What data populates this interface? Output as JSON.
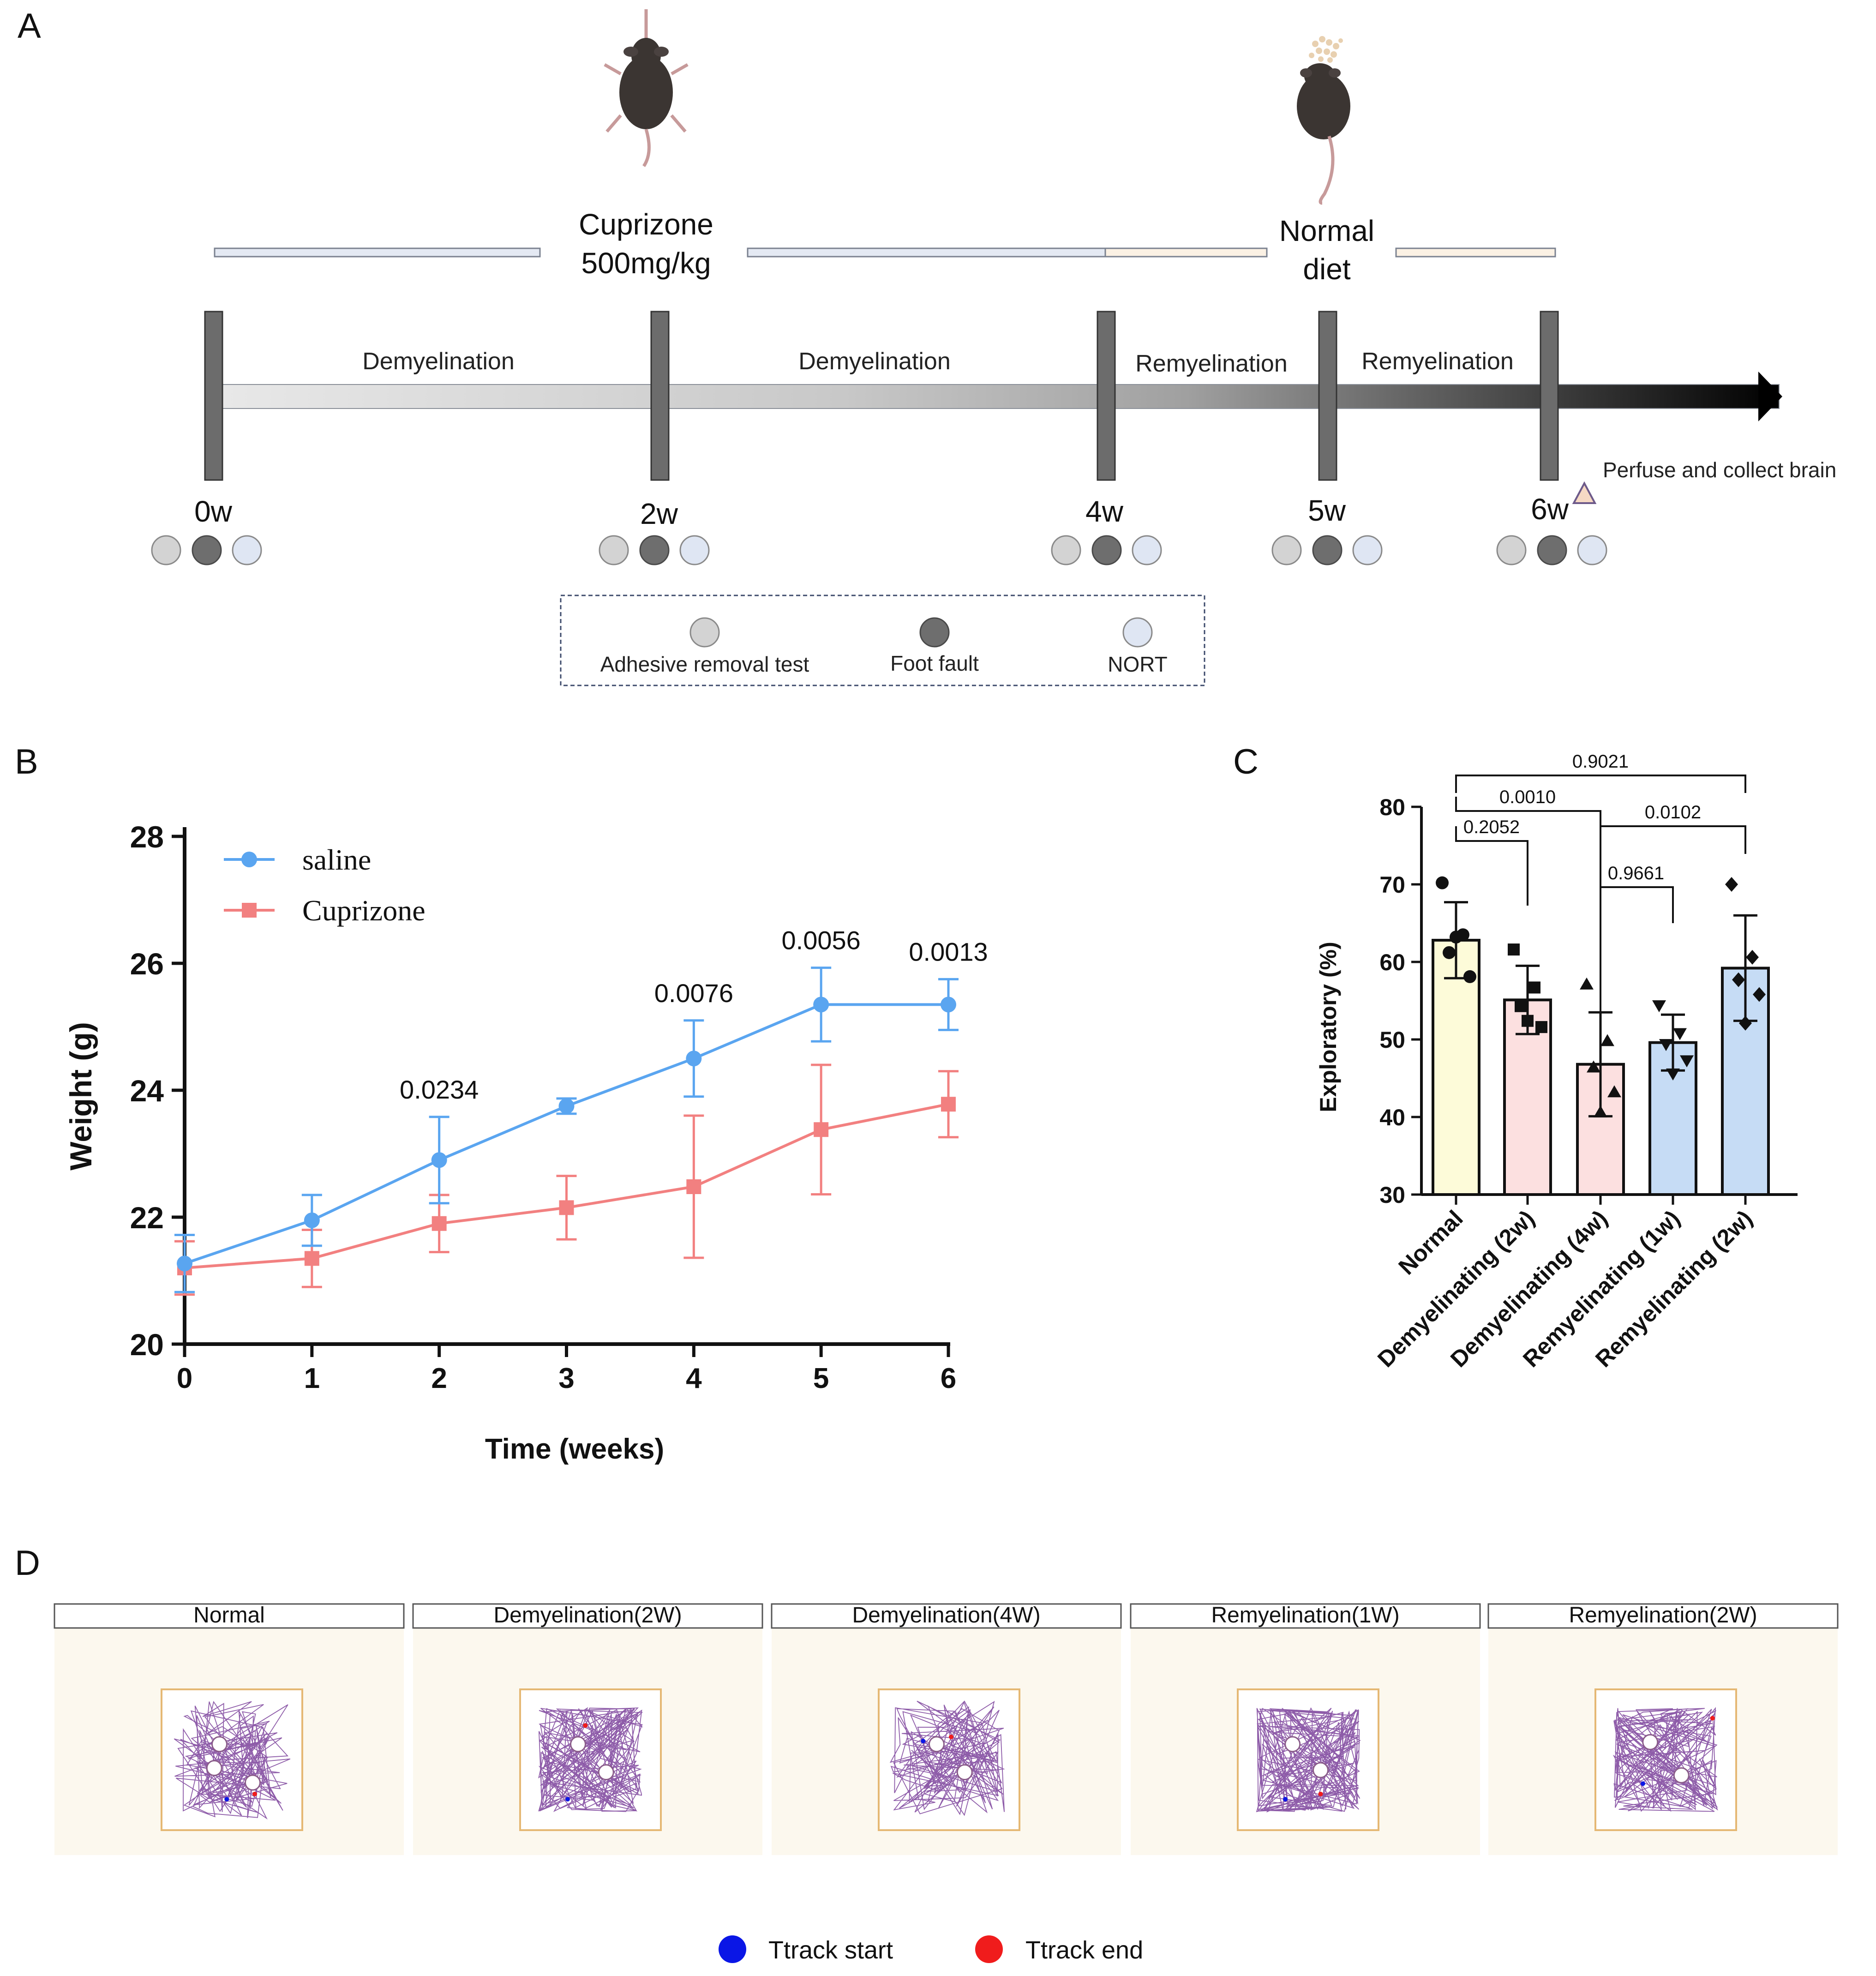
{
  "panels": {
    "a": "A",
    "b": "B",
    "c": "C",
    "d": "D"
  },
  "panel_a": {
    "treatment_label": [
      "Cuprizone",
      "500mg/kg"
    ],
    "normal_label": [
      "Normal",
      "diet"
    ],
    "phases": [
      "Demyelination",
      "Demyelination",
      "Remyelination",
      "Remyelination"
    ],
    "weeks": [
      "0w",
      "2w",
      "4w",
      "5w",
      "6w"
    ],
    "perfuse_label": "Perfuse and collect brain",
    "legend": [
      {
        "label": "Adhesive removal test",
        "color": "#d3d3d3"
      },
      {
        "label": "Foot fault",
        "color": "#6e6e6e"
      },
      {
        "label": "NORT",
        "color": "#dfe6f3"
      }
    ]
  },
  "chart_data": [
    {
      "type": "line",
      "panel": "B",
      "xlabel": "Time (weeks)",
      "ylabel": "Weight (g)",
      "x": [
        0,
        1,
        2,
        3,
        4,
        5,
        6
      ],
      "xlim": [
        0,
        6
      ],
      "ylim": [
        20,
        28
      ],
      "yticks": [
        20,
        22,
        24,
        26,
        28
      ],
      "series": [
        {
          "name": "saline",
          "color": "#5aa5f0",
          "marker": "circle",
          "values": [
            21.27,
            21.95,
            22.9,
            23.75,
            24.5,
            25.35,
            25.35
          ],
          "errors": [
            0.45,
            0.4,
            0.68,
            0.12,
            0.6,
            0.58,
            0.4
          ]
        },
        {
          "name": "Cuprizone",
          "color": "#f28080",
          "marker": "square",
          "values": [
            21.2,
            21.35,
            21.9,
            22.15,
            22.48,
            23.38,
            23.78
          ],
          "errors": [
            0.42,
            0.45,
            0.45,
            0.5,
            1.12,
            1.02,
            0.52
          ]
        }
      ],
      "annotations": [
        {
          "x": 2,
          "label": "0.0234"
        },
        {
          "x": 4,
          "label": "0.0076"
        },
        {
          "x": 5,
          "label": "0.0056"
        },
        {
          "x": 6,
          "label": "0.0013"
        }
      ],
      "legend_position": "top-left"
    },
    {
      "type": "bar",
      "panel": "C",
      "ylabel": "Exploratory (%)",
      "ylim": [
        30,
        80
      ],
      "yticks": [
        30,
        40,
        50,
        60,
        70,
        80
      ],
      "categories": [
        "Normal",
        "Demyelinating (2w)",
        "Demyelinating (4w)",
        "Remyelinating (1w)",
        "Remyelinating (2w)"
      ],
      "values": [
        62.8,
        55.1,
        46.8,
        49.6,
        59.2
      ],
      "errors": [
        4.9,
        4.4,
        6.7,
        3.6,
        6.8
      ],
      "colors": [
        "#fdfbd9",
        "#fce0e0",
        "#fce0e0",
        "#c6dcf5",
        "#c6dcf5"
      ],
      "markers": [
        "circle",
        "square",
        "triangle",
        "triangle-down",
        "diamond"
      ],
      "points": [
        [
          70.2,
          63.5,
          61.2,
          58.1,
          63.2
        ],
        [
          61.6,
          56.7,
          54.3,
          51.6,
          52.4
        ],
        [
          57.1,
          49.8,
          46.4,
          43.2,
          40.6
        ],
        [
          54.4,
          50.8,
          49.4,
          47.3,
          45.6
        ],
        [
          70.0,
          60.6,
          57.7,
          55.8,
          52.1
        ]
      ],
      "comparisons": [
        {
          "from": 0,
          "to": 1,
          "label": "0.2052"
        },
        {
          "from": 0,
          "to": 2,
          "label": "0.0010"
        },
        {
          "from": 0,
          "to": 4,
          "label": "0.9021"
        },
        {
          "from": 2,
          "to": 3,
          "label": "0.9661"
        },
        {
          "from": 2,
          "to": 4,
          "label": "0.0102"
        }
      ]
    }
  ],
  "panel_d": {
    "groups": [
      "Normal",
      "Demyelination(2W)",
      "Demyelination(4W)",
      "Remyelination(1W)",
      "Remyelination(2W)"
    ],
    "legend": [
      {
        "label": "Ttrack start",
        "color": "#0a16e6"
      },
      {
        "label": "Ttrack end",
        "color": "#f01c1c"
      }
    ],
    "track_color": "#7a3f9a",
    "background_color": "#fcf8ee",
    "box_color": "#e5b874"
  }
}
